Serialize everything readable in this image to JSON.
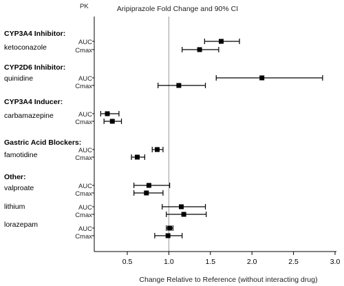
{
  "chart_data": {
    "type": "forest",
    "title": "Aripiprazole Fold Change and 90% CI",
    "column_header": "PK",
    "xlabel": "Change Relative to Reference (without interacting drug)",
    "xlim": [
      0.2,
      3.0
    ],
    "reference_line": 1.0,
    "x_ticks": [
      "0.5",
      "1.0",
      "1.5",
      "2.0",
      "2.5",
      "3.0"
    ],
    "groups": [
      {
        "label": "CYP3A4 Inhibitor:",
        "drugs": [
          {
            "name": "ketoconazole",
            "rows": [
              {
                "pk": "AUC",
                "value": 1.63,
                "lo": 1.43,
                "hi": 1.85
              },
              {
                "pk": "Cmax",
                "value": 1.37,
                "lo": 1.16,
                "hi": 1.6
              }
            ]
          }
        ]
      },
      {
        "label": "CYP2D6 Inhibitor:",
        "drugs": [
          {
            "name": "quinidine",
            "rows": [
              {
                "pk": "AUC",
                "value": 2.12,
                "lo": 1.57,
                "hi": 2.85
              },
              {
                "pk": "Cmax",
                "value": 1.12,
                "lo": 0.87,
                "hi": 1.44
              }
            ]
          }
        ]
      },
      {
        "label": "CYP3A4 Inducer:",
        "drugs": [
          {
            "name": "carbamazepine",
            "rows": [
              {
                "pk": "AUC",
                "value": 0.26,
                "lo": 0.18,
                "hi": 0.4
              },
              {
                "pk": "Cmax",
                "value": 0.32,
                "lo": 0.22,
                "hi": 0.43
              }
            ]
          }
        ]
      },
      {
        "label": "Gastric Acid Blockers:",
        "drugs": [
          {
            "name": "famotidine",
            "rows": [
              {
                "pk": "AUC",
                "value": 0.86,
                "lo": 0.8,
                "hi": 0.93
              },
              {
                "pk": "Cmax",
                "value": 0.62,
                "lo": 0.55,
                "hi": 0.71
              }
            ]
          }
        ]
      },
      {
        "label": "Other:",
        "drugs": [
          {
            "name": "valproate",
            "rows": [
              {
                "pk": "AUC",
                "value": 0.76,
                "lo": 0.58,
                "hi": 1.01
              },
              {
                "pk": "Cmax",
                "value": 0.73,
                "lo": 0.58,
                "hi": 0.93
              }
            ]
          },
          {
            "name": "lithium",
            "rows": [
              {
                "pk": "AUC",
                "value": 1.15,
                "lo": 0.92,
                "hi": 1.44
              },
              {
                "pk": "Cmax",
                "value": 1.18,
                "lo": 0.97,
                "hi": 1.45
              }
            ]
          },
          {
            "name": "lorazepam",
            "rows": [
              {
                "pk": "AUC",
                "value": 1.01,
                "lo": 0.97,
                "hi": 1.05
              },
              {
                "pk": "Cmax",
                "value": 0.99,
                "lo": 0.83,
                "hi": 1.16
              }
            ]
          }
        ]
      }
    ]
  }
}
